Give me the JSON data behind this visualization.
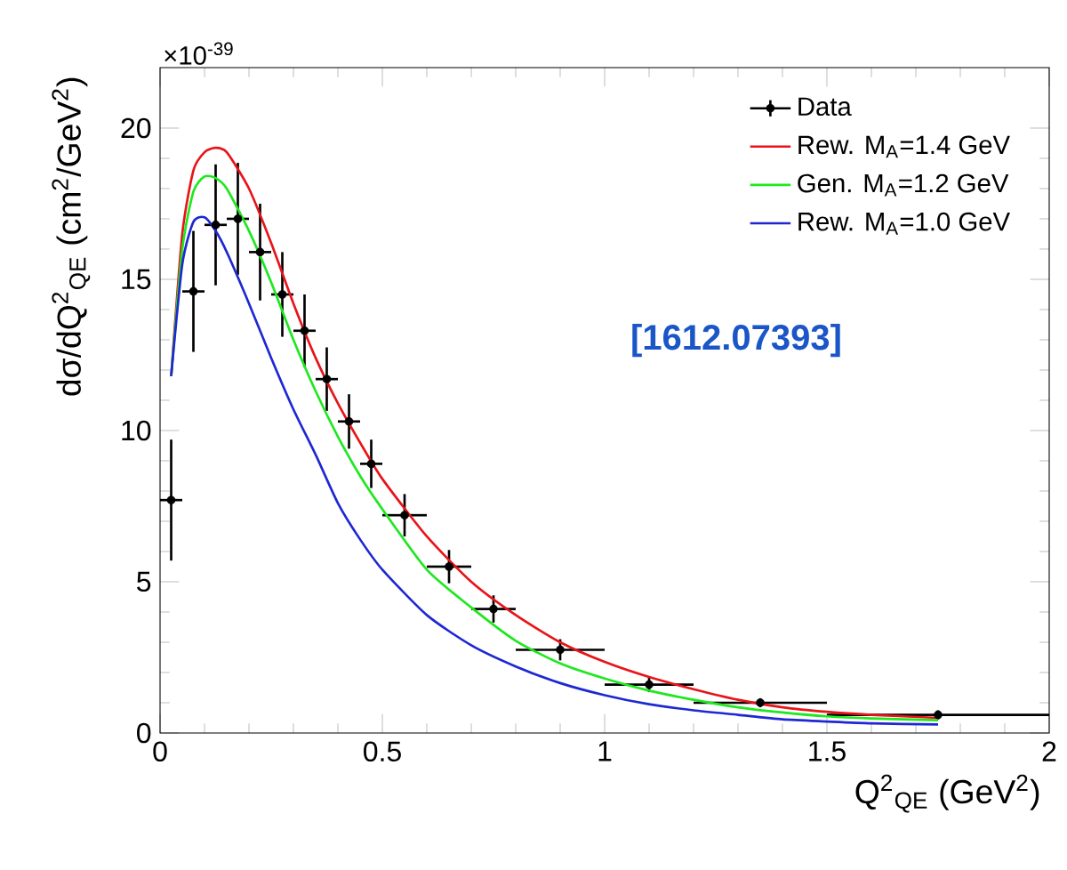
{
  "chart_data": {
    "type": "line",
    "xlabel": "Q$^{2}$$_{QE}$ (GeV$^{2}$)",
    "ylabel": "dσ/dQ$^{2}$$_{QE}$ (cm$^{2}$/GeV$^{2}$)",
    "xlim": [
      0,
      2
    ],
    "ylim": [
      0,
      22
    ],
    "xticks": [
      0,
      0.5,
      1,
      1.5,
      2
    ],
    "yticks": [
      0,
      5,
      10,
      15,
      20
    ],
    "legend": "top right",
    "annotations": [
      "×10$^{-39}$",
      "[1612.07393]"
    ],
    "series": [
      {
        "name": "Data",
        "type": "scatter",
        "marker": "circle",
        "color": "#000000",
        "x": [
          0.025,
          0.075,
          0.125,
          0.175,
          0.225,
          0.275,
          0.325,
          0.375,
          0.425,
          0.475,
          0.55,
          0.65,
          0.75,
          0.9,
          1.1,
          1.35,
          1.75
        ],
        "values": [
          7.7,
          14.6,
          16.8,
          17.0,
          15.9,
          14.5,
          13.3,
          11.7,
          10.3,
          8.9,
          7.2,
          5.5,
          4.1,
          2.75,
          1.6,
          1.0,
          0.6
        ],
        "errors": [
          2.0,
          2.0,
          2.0,
          1.85,
          1.6,
          1.4,
          1.2,
          1.05,
          0.9,
          0.8,
          0.7,
          0.55,
          0.45,
          0.35,
          0.25,
          0.15,
          0.15
        ],
        "xerrors": [
          0.025,
          0.025,
          0.025,
          0.025,
          0.025,
          0.025,
          0.025,
          0.025,
          0.025,
          0.025,
          0.05,
          0.05,
          0.05,
          0.1,
          0.1,
          0.15,
          0.25
        ]
      },
      {
        "name": "Rew. M$_{A}$=1.4 GeV",
        "color": "#e8141a",
        "x": [
          0.025,
          0.05,
          0.075,
          0.1,
          0.125,
          0.15,
          0.2,
          0.25,
          0.3,
          0.35,
          0.4,
          0.45,
          0.5,
          0.6,
          0.7,
          0.8,
          0.9,
          1.0,
          1.1,
          1.2,
          1.3,
          1.4,
          1.5,
          1.6,
          1.75
        ],
        "values": [
          11.8,
          16.5,
          18.6,
          19.2,
          19.35,
          19.2,
          18.0,
          16.2,
          14.2,
          12.4,
          10.9,
          9.6,
          8.4,
          6.5,
          5.0,
          3.9,
          3.0,
          2.35,
          1.85,
          1.45,
          1.1,
          0.85,
          0.7,
          0.6,
          0.5
        ]
      },
      {
        "name": "Gen. M$_{A}$=1.2 GeV",
        "color": "#1ee81e",
        "x": [
          0.025,
          0.05,
          0.075,
          0.1,
          0.125,
          0.15,
          0.2,
          0.25,
          0.3,
          0.35,
          0.4,
          0.45,
          0.5,
          0.6,
          0.7,
          0.8,
          0.9,
          1.0,
          1.1,
          1.2,
          1.3,
          1.4,
          1.5,
          1.6,
          1.75
        ],
        "values": [
          11.8,
          16.0,
          17.9,
          18.4,
          18.35,
          18.0,
          16.6,
          14.9,
          13.0,
          11.3,
          9.8,
          8.5,
          7.4,
          5.4,
          4.15,
          3.05,
          2.3,
          1.8,
          1.4,
          1.1,
          0.85,
          0.68,
          0.55,
          0.48,
          0.42
        ]
      },
      {
        "name": "Rew. M$_{A}$=1.0 GeV",
        "color": "#1e28d2",
        "x": [
          0.025,
          0.05,
          0.075,
          0.1,
          0.125,
          0.15,
          0.2,
          0.25,
          0.3,
          0.35,
          0.4,
          0.45,
          0.5,
          0.6,
          0.7,
          0.8,
          0.9,
          1.0,
          1.1,
          1.2,
          1.3,
          1.4,
          1.5,
          1.6,
          1.75
        ],
        "values": [
          11.8,
          15.5,
          16.9,
          17.05,
          16.6,
          15.9,
          14.2,
          12.4,
          10.7,
          9.2,
          7.6,
          6.4,
          5.4,
          3.9,
          2.9,
          2.2,
          1.65,
          1.25,
          0.95,
          0.75,
          0.6,
          0.45,
          0.38,
          0.32,
          0.28
        ]
      }
    ]
  }
}
